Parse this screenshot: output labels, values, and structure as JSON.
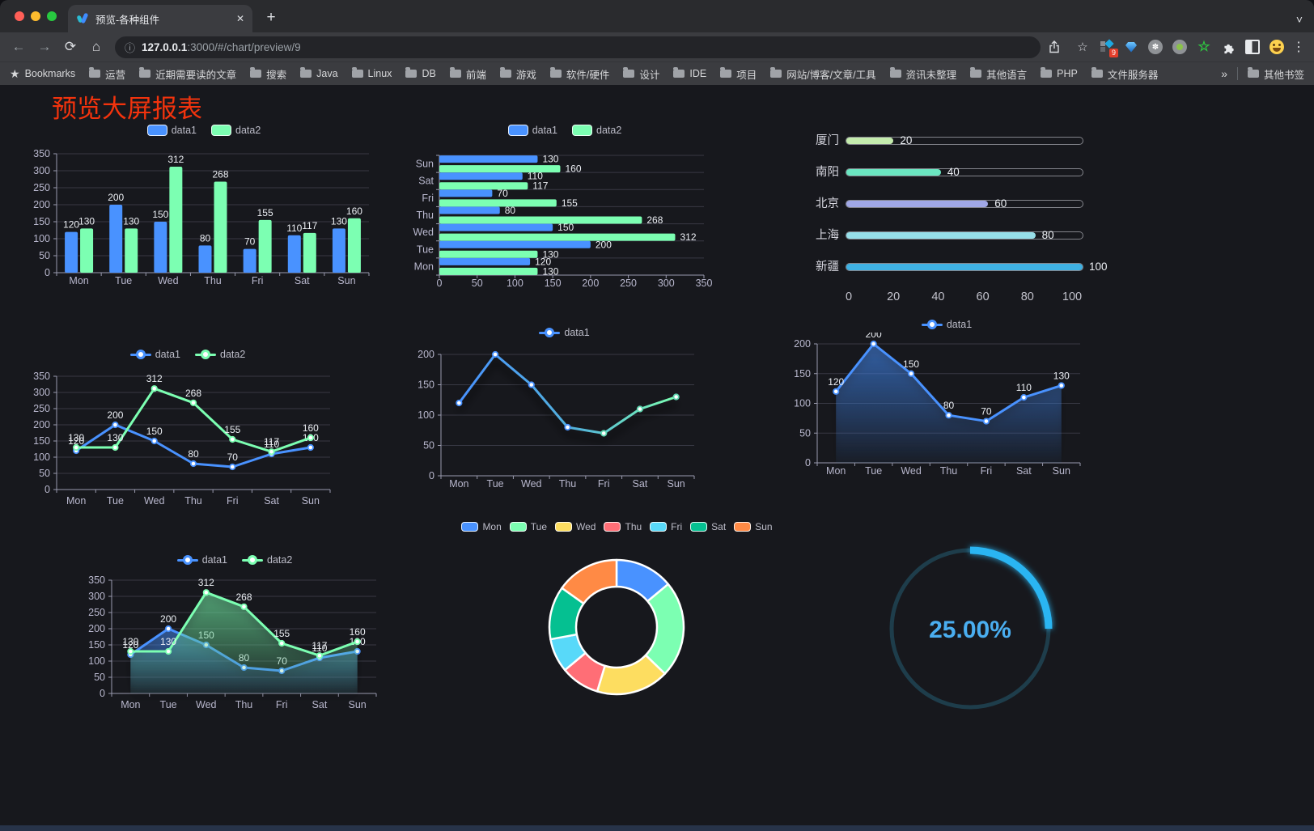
{
  "browser": {
    "tab_title": "预览-各种组件",
    "url_host": "127.0.0.1",
    "url_rest": ":3000/#/chart/preview/9",
    "bookmarks_label": "Bookmarks",
    "bookmark_items": [
      "运营",
      "近期需要读的文章",
      "搜索",
      "Java",
      "Linux",
      "DB",
      "前端",
      "游戏",
      "软件/硬件",
      "设计",
      "IDE",
      "项目",
      "网站/博客/文章/工具",
      "资讯未整理",
      "其他语言",
      "PHP",
      "文件服务器"
    ],
    "overflow_chevron": "»",
    "other_bookmarks": "其他书签",
    "extension_badge": "9"
  },
  "icons": {
    "back": "←",
    "forward": "→",
    "reload": "⟳",
    "home": "⌂",
    "info": "ⓘ",
    "star_outline": "☆",
    "menu_dots": "⋮",
    "tab_close": "✕",
    "new_tab": "+",
    "chevron_down": "˅",
    "bookmarks_star": "★",
    "asterisk": "✽"
  },
  "page": {
    "title": "预览大屏报表"
  },
  "colors": {
    "data1": "#4992ff",
    "data2": "#7cffb2",
    "title_red": "#f2330d",
    "gauge_blue": "#2cb5f2"
  },
  "chart_data": [
    {
      "id": "bar-grouped",
      "type": "bar",
      "categories": [
        "Mon",
        "Tue",
        "Wed",
        "Thu",
        "Fri",
        "Sat",
        "Sun"
      ],
      "series": [
        {
          "name": "data1",
          "color": "#4992ff",
          "values": [
            120,
            200,
            150,
            80,
            70,
            110,
            130
          ]
        },
        {
          "name": "data2",
          "color": "#7cffb2",
          "values": [
            130,
            130,
            312,
            268,
            155,
            117,
            160
          ]
        }
      ],
      "ylim": [
        0,
        350
      ],
      "ystep": 50,
      "legend_position": "top",
      "grid": true
    },
    {
      "id": "bar-horizontal",
      "type": "bar",
      "orientation": "horizontal",
      "categories": [
        "Mon",
        "Tue",
        "Wed",
        "Thu",
        "Fri",
        "Sat",
        "Sun"
      ],
      "series": [
        {
          "name": "data1",
          "color": "#4992ff",
          "values": [
            120,
            200,
            150,
            80,
            70,
            110,
            130
          ]
        },
        {
          "name": "data2",
          "color": "#7cffb2",
          "values": [
            130,
            130,
            312,
            268,
            155,
            117,
            160
          ]
        }
      ],
      "xlim": [
        0,
        350
      ],
      "xstep": 50,
      "note": "categories drawn bottom-to-top Mon..Sun"
    },
    {
      "id": "city-progress",
      "type": "bar",
      "subtype": "progress",
      "categories": [
        "厦门",
        "南阳",
        "北京",
        "上海",
        "新疆"
      ],
      "values": [
        20,
        40,
        60,
        80,
        100
      ],
      "colors": [
        "#c4ebad",
        "#6be6c1",
        "#a0a7e6",
        "#96dee8",
        "#3fb1e3"
      ],
      "xlim": [
        0,
        100
      ],
      "xticks": [
        0,
        20,
        40,
        60,
        80,
        100
      ]
    },
    {
      "id": "line-two-series",
      "type": "line",
      "categories": [
        "Mon",
        "Tue",
        "Wed",
        "Thu",
        "Fri",
        "Sat",
        "Sun"
      ],
      "series": [
        {
          "name": "data1",
          "color": "#4992ff",
          "values": [
            120,
            200,
            150,
            80,
            70,
            110,
            130
          ]
        },
        {
          "name": "data2",
          "color": "#7cffb2",
          "values": [
            130,
            130,
            312,
            268,
            155,
            117,
            160
          ]
        }
      ],
      "ylim": [
        0,
        350
      ],
      "ystep": 50,
      "show_labels": true
    },
    {
      "id": "line-gradient",
      "type": "line",
      "categories": [
        "Mon",
        "Tue",
        "Wed",
        "Thu",
        "Fri",
        "Sat",
        "Sun"
      ],
      "series": [
        {
          "name": "data1",
          "gradient": [
            "#4992ff",
            "#7cffb2"
          ],
          "color": "#4992ff",
          "values": [
            120,
            200,
            150,
            80,
            70,
            110,
            130
          ]
        }
      ],
      "ylim": [
        0,
        200
      ],
      "ystep": 50,
      "show_labels": false
    },
    {
      "id": "area-one-series",
      "type": "area",
      "categories": [
        "Mon",
        "Tue",
        "Wed",
        "Thu",
        "Fri",
        "Sat",
        "Sun"
      ],
      "series": [
        {
          "name": "data1",
          "color": "#4992ff",
          "values": [
            120,
            200,
            150,
            80,
            70,
            110,
            130
          ]
        }
      ],
      "ylim": [
        0,
        200
      ],
      "ystep": 50,
      "show_labels": true
    },
    {
      "id": "area-two-series",
      "type": "area",
      "categories": [
        "Mon",
        "Tue",
        "Wed",
        "Thu",
        "Fri",
        "Sat",
        "Sun"
      ],
      "series": [
        {
          "name": "data1",
          "color": "#4992ff",
          "values": [
            120,
            200,
            150,
            80,
            70,
            110,
            130
          ]
        },
        {
          "name": "data2",
          "color": "#7cffb2",
          "values": [
            130,
            130,
            312,
            268,
            155,
            117,
            160
          ]
        }
      ],
      "ylim": [
        0,
        350
      ],
      "ystep": 50,
      "show_labels": true
    },
    {
      "id": "donut",
      "type": "pie",
      "categories": [
        "Mon",
        "Tue",
        "Wed",
        "Thu",
        "Fri",
        "Sat",
        "Sun"
      ],
      "values": [
        120,
        200,
        150,
        80,
        70,
        110,
        130
      ],
      "colors": [
        "#4992ff",
        "#7cffb2",
        "#fddd60",
        "#ff6e76",
        "#58d9f9",
        "#05c091",
        "#ff8a45"
      ],
      "donut": true
    },
    {
      "id": "gauge",
      "type": "gauge",
      "percent": 25,
      "label": "25.00%",
      "color": "#2cb5f2"
    }
  ]
}
